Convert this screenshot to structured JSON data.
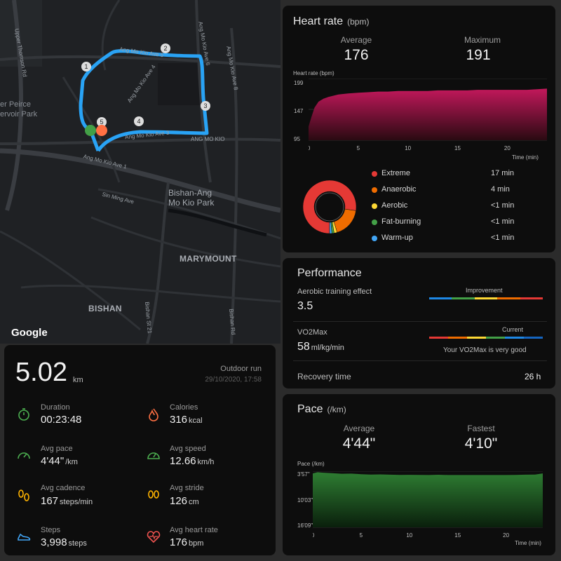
{
  "map": {
    "labels": {
      "upper_thomson": "Upper Thomson Rd",
      "reservoir": "er Peirce\nervoir Park",
      "ave5": "Ang Mo Kio Ave 5",
      "ave4": "Ang Mo Kio Ave 4",
      "ave6": "Ang Mo Kio Ave 6",
      "ave8": "Ang Mo Kio Ave 8",
      "ave3": "Ang Mo Kio Ave 3",
      "amk": "ANG MO KIO",
      "ave1": "Ang Mo Kio Ave 1",
      "sin_ming": "Sin Ming Ave",
      "park": "Bishan-Ang\nMo Kio Park",
      "marymount": "MARYMOUNT",
      "bishan": "BISHAN",
      "bishan_rd": "Bishan Rd",
      "bishan_st": "Bishan St 21",
      "google": "Google"
    },
    "markers": [
      "1",
      "2",
      "3",
      "4",
      "5"
    ]
  },
  "summary": {
    "distance": "5.02",
    "distance_unit": "km",
    "activity": "Outdoor run",
    "datetime": "29/10/2020, 17:58",
    "metrics": [
      {
        "label": "Duration",
        "value": "00:23:48",
        "unit": "",
        "icon": "stopwatch-icon"
      },
      {
        "label": "Calories",
        "value": "316",
        "unit": "kcal",
        "icon": "flame-icon"
      },
      {
        "label": "Avg pace",
        "value": "4'44\"",
        "unit": "/km",
        "icon": "pace-gauge-icon"
      },
      {
        "label": "Avg speed",
        "value": "12.66",
        "unit": "km/h",
        "icon": "speedometer-icon"
      },
      {
        "label": "Avg cadence",
        "value": "167",
        "unit": "steps/min",
        "icon": "footprints-icon"
      },
      {
        "label": "Avg stride",
        "value": "126",
        "unit": "cm",
        "icon": "stride-icon"
      },
      {
        "label": "Steps",
        "value": "3,998",
        "unit": "steps",
        "icon": "shoe-icon"
      },
      {
        "label": "Avg heart rate",
        "value": "176",
        "unit": "bpm",
        "icon": "heart-rate-icon"
      }
    ],
    "colors": {
      "duration": "#4caf50",
      "calories": "#ff7043",
      "pace": "#4caf50",
      "speed": "#4caf50",
      "cadence": "#ffb300",
      "stride": "#ffb300",
      "steps": "#42a5f5",
      "hr": "#ef5350"
    }
  },
  "heart_rate": {
    "title": "Heart rate",
    "unit": "(bpm)",
    "average_label": "Average",
    "average": "176",
    "max_label": "Maximum",
    "max": "191",
    "chart_title": "Heart rate (bpm)",
    "x_title": "Time (min)",
    "zones": [
      {
        "name": "Extreme",
        "duration": "17 min",
        "color": "#e53935"
      },
      {
        "name": "Anaerobic",
        "duration": "4 min",
        "color": "#ef6c00"
      },
      {
        "name": "Aerobic",
        "duration": "<1 min",
        "color": "#fdd835"
      },
      {
        "name": "Fat-burning",
        "duration": "<1 min",
        "color": "#43a047"
      },
      {
        "name": "Warm-up",
        "duration": "<1 min",
        "color": "#42a5f5"
      }
    ]
  },
  "performance": {
    "title": "Performance",
    "aerobic_label": "Aerobic training effect",
    "aerobic_value": "3.5",
    "aerobic_status": "Improvement",
    "vo2_label": "VO2Max",
    "vo2_value": "58",
    "vo2_unit": "ml/kg/min",
    "vo2_status": "Current",
    "vo2_note": "Your VO2Max is very good",
    "recovery_label": "Recovery time",
    "recovery_value": "26 h",
    "bar_colors": [
      "#1e88e5",
      "#43a047",
      "#fdd835",
      "#ef6c00",
      "#e53935"
    ],
    "vo2_bar_colors": [
      "#e53935",
      "#ef6c00",
      "#fdd835",
      "#43a047",
      "#1e88e5",
      "#1565c0"
    ]
  },
  "pace": {
    "title": "Pace",
    "unit": "(/km)",
    "average_label": "Average",
    "average": "4'44\"",
    "fastest_label": "Fastest",
    "fastest": "4'10\"",
    "chart_title": "Pace (/km)",
    "x_title": "Time (min)"
  },
  "chart_data": [
    {
      "type": "area",
      "title": "Heart rate (bpm)",
      "xlabel": "Time (min)",
      "ylabel": "",
      "x_ticks": [
        0,
        5,
        10,
        15,
        20
      ],
      "y_ticks": [
        "199",
        "147",
        "95"
      ],
      "xlim": [
        0,
        24
      ],
      "ylim": [
        95,
        199
      ],
      "x": [
        0,
        0.3,
        0.6,
        1,
        1.5,
        2,
        2.5,
        3,
        4,
        5,
        6,
        7,
        8,
        9,
        10,
        11,
        12,
        13,
        14,
        15,
        16,
        17,
        18,
        19,
        20,
        21,
        22,
        23,
        24
      ],
      "series": [
        {
          "values": [
            118,
            135,
            150,
            160,
            165,
            168,
            170,
            172,
            174,
            175,
            176,
            177,
            177,
            178,
            178,
            178,
            178,
            179,
            179,
            179,
            179,
            180,
            180,
            180,
            180,
            180,
            180,
            181,
            182
          ]
        }
      ],
      "color": "#c2185b"
    },
    {
      "type": "donut",
      "title": "",
      "categories": [
        "Extreme",
        "Anaerobic",
        "Aerobic",
        "Fat-burning",
        "Warm-up"
      ],
      "values": [
        17,
        4,
        0.4,
        0.3,
        0.3
      ]
    },
    {
      "type": "area",
      "title": "Pace (/km)",
      "xlabel": "Time (min)",
      "ylabel": "",
      "x_ticks": [
        0,
        5,
        10,
        15,
        20
      ],
      "y_ticks": [
        "3'57\"",
        "10'03\"",
        "16'09\""
      ],
      "xlim": [
        0,
        23.8
      ],
      "ylim_seconds": [
        237,
        969
      ],
      "y_inverted": true,
      "x": [
        0,
        0.5,
        1,
        2,
        3,
        4,
        5,
        6,
        7,
        8,
        9,
        10,
        11,
        12,
        13,
        14,
        15,
        16,
        17,
        18,
        19,
        20,
        21,
        22,
        23,
        23.8
      ],
      "series": [
        {
          "values_seconds": [
            265,
            250,
            255,
            262,
            270,
            268,
            275,
            280,
            278,
            282,
            285,
            284,
            285,
            286,
            283,
            286,
            286,
            286,
            286,
            286,
            286,
            286,
            285,
            282,
            280,
            265
          ]
        }
      ],
      "color": "#2e7d32"
    }
  ]
}
